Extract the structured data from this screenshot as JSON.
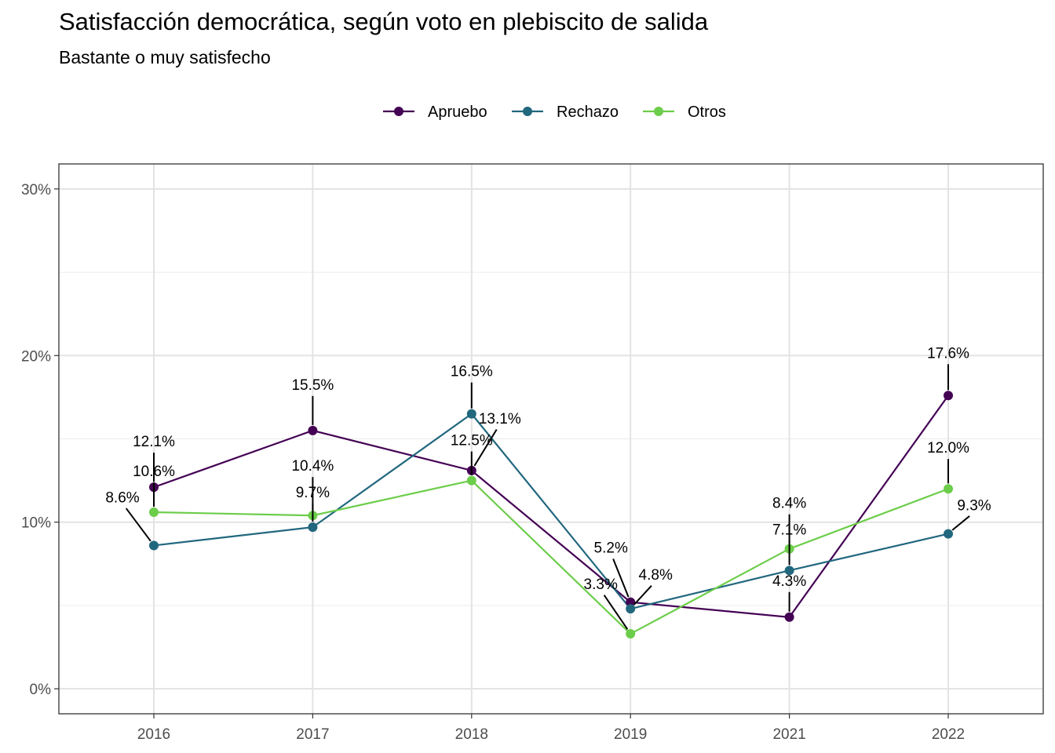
{
  "chart_data": {
    "type": "line",
    "title": "Satisfacción democrática, según voto en plebiscito de salida",
    "subtitle": "Bastante o muy satisfecho",
    "categories": [
      "2016",
      "2017",
      "2018",
      "2019",
      "2021",
      "2022"
    ],
    "yticks": [
      "0%",
      "10%",
      "20%",
      "30%"
    ],
    "ylim": [
      -1.5,
      31.5
    ],
    "grid": true,
    "legend_position": "top",
    "series": [
      {
        "name": "Apruebo",
        "color": "#440154",
        "values": [
          12.1,
          15.5,
          13.1,
          5.2,
          4.3,
          17.6
        ],
        "labels": [
          "12.1%",
          "15.5%",
          "13.1%",
          "5.2%",
          "4.3%",
          "17.6%"
        ]
      },
      {
        "name": "Rechazo",
        "color": "#21677e",
        "values": [
          8.6,
          9.7,
          16.5,
          4.8,
          7.1,
          9.3
        ],
        "labels": [
          "8.6%",
          "9.7%",
          "16.5%",
          "4.8%",
          "7.1%",
          "9.3%"
        ]
      },
      {
        "name": "Otros",
        "color": "#6ccd4a",
        "values": [
          10.6,
          10.4,
          12.5,
          3.3,
          8.4,
          12.0
        ],
        "labels": [
          "10.6%",
          "10.4%",
          "12.5%",
          "3.3%",
          "8.4%",
          "12.0%"
        ]
      }
    ]
  }
}
